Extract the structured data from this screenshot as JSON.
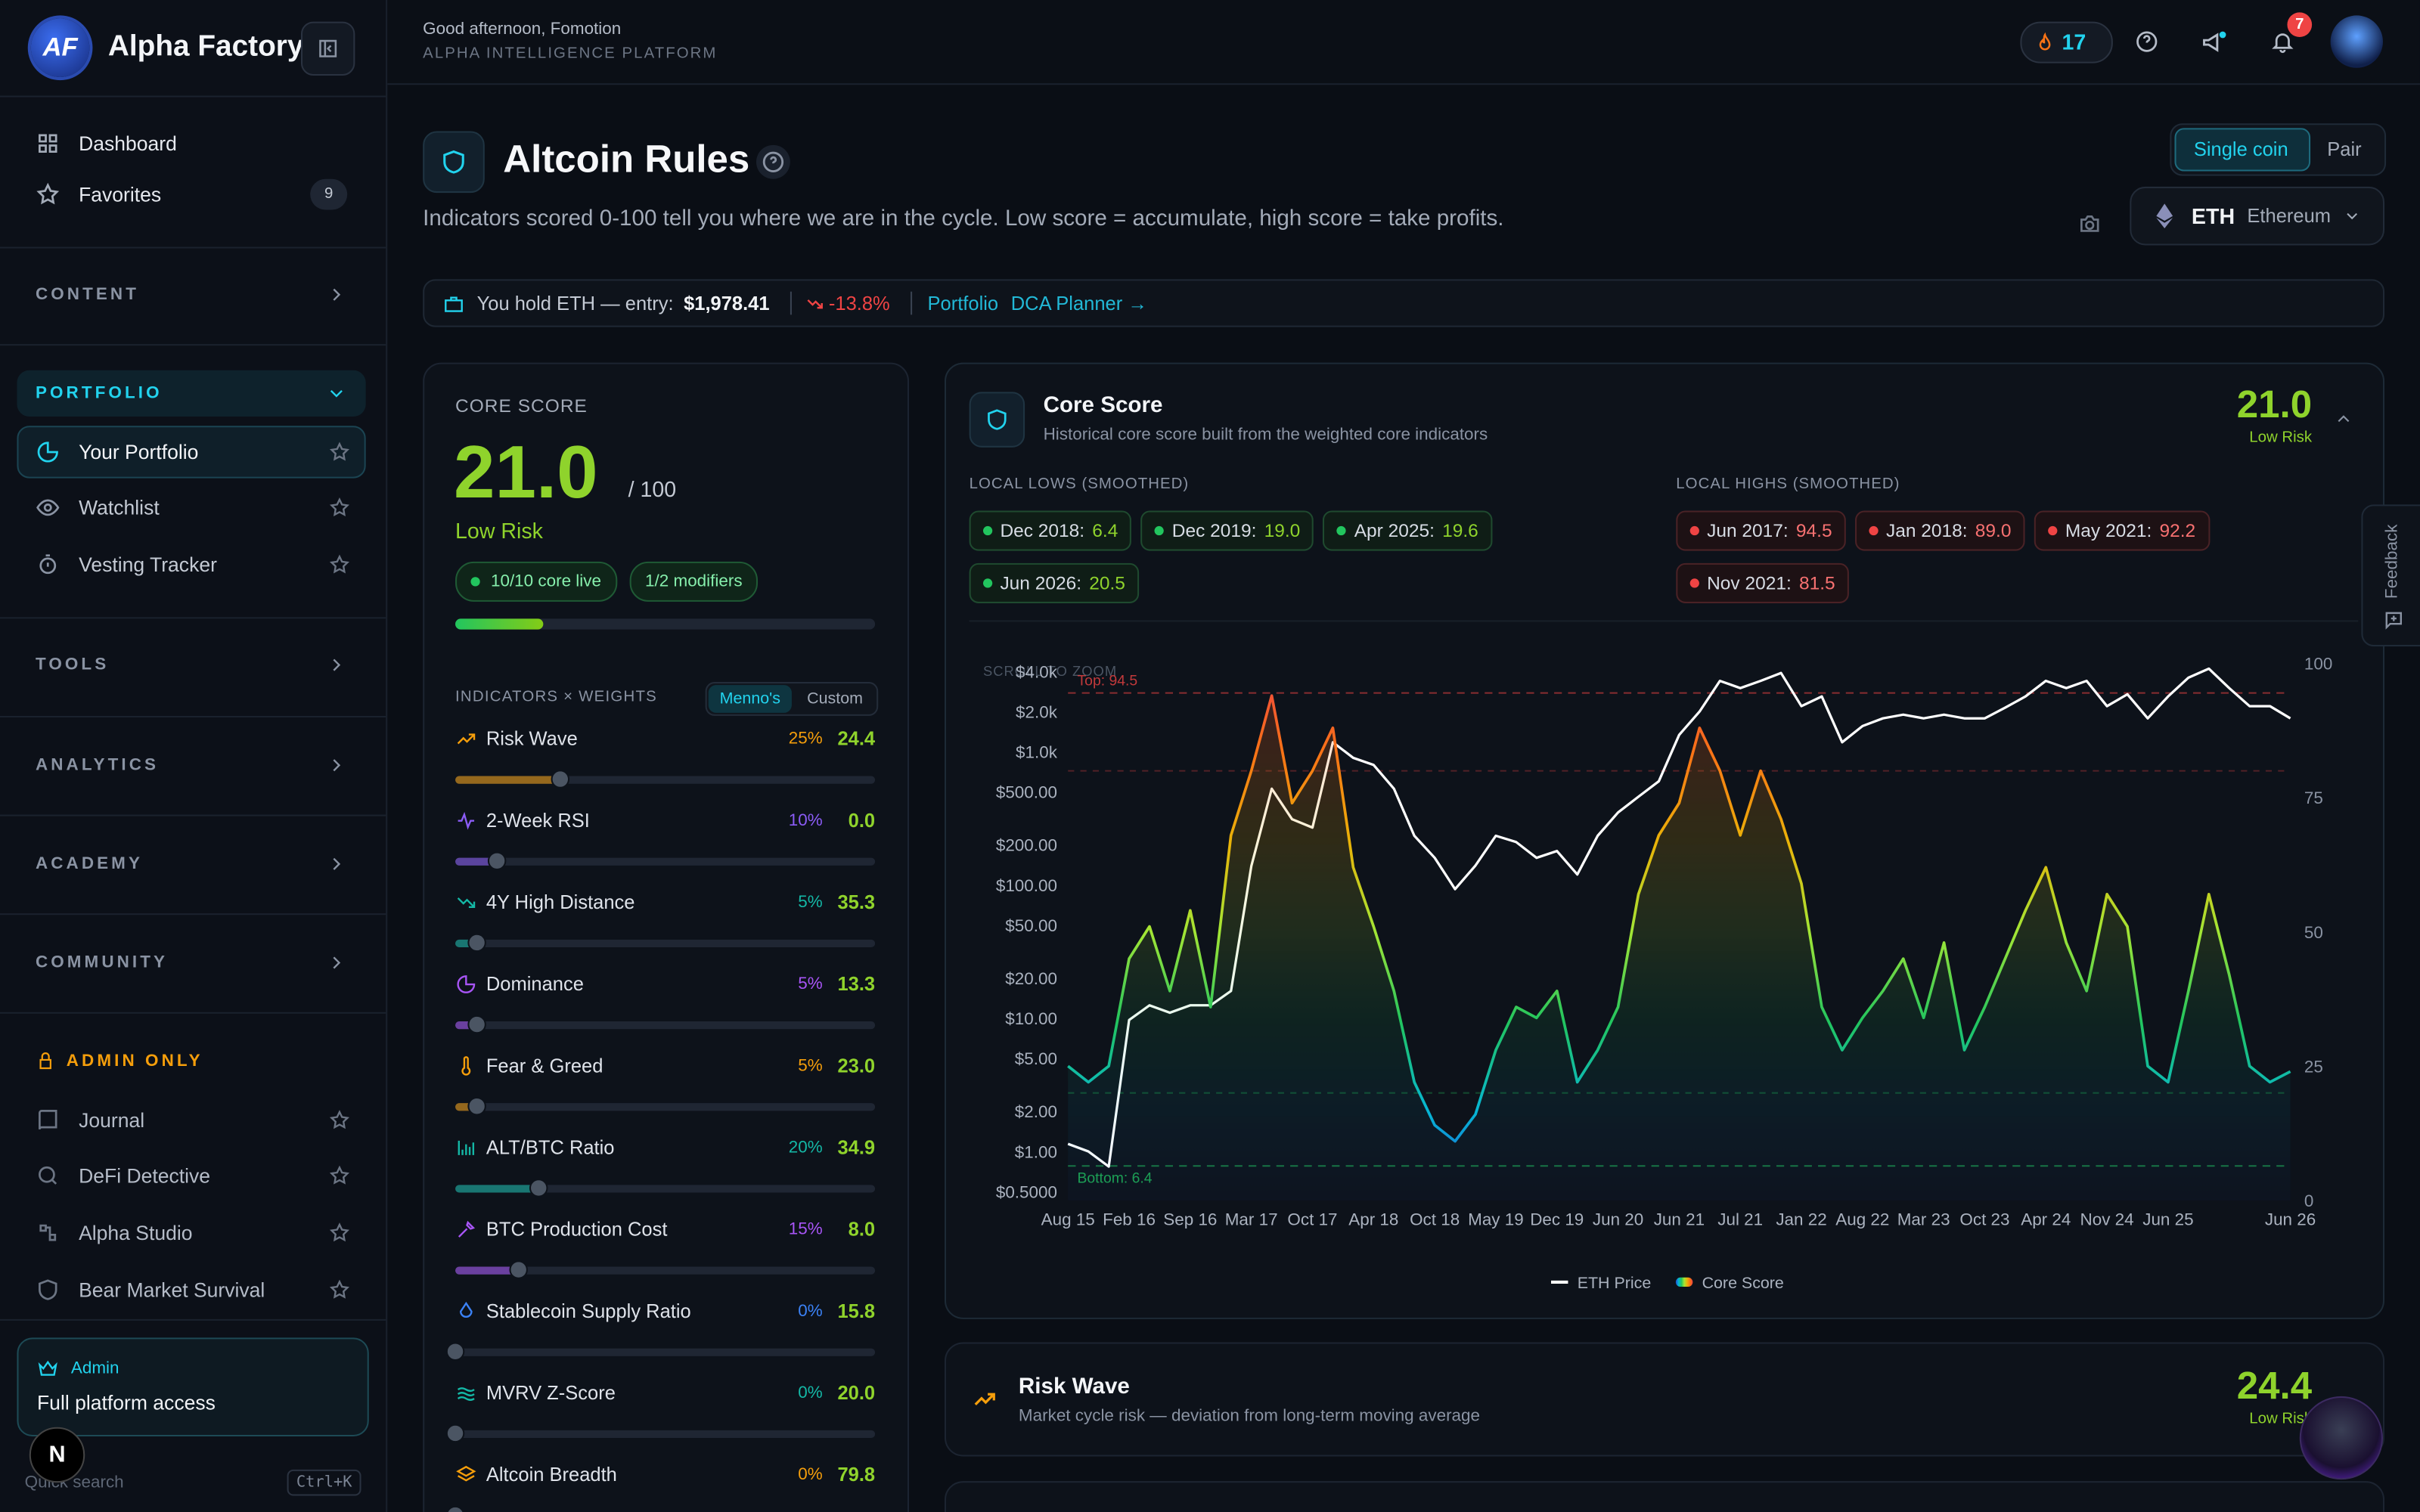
{
  "sidebar": {
    "logo": "AF",
    "brand": "Alpha Factory",
    "nav": [
      {
        "label": "Dashboard"
      },
      {
        "label": "Favorites",
        "badge": "9"
      }
    ],
    "groups": [
      {
        "label": "CONTENT"
      },
      {
        "label": "PORTFOLIO",
        "items": [
          "Your Portfolio",
          "Watchlist",
          "Vesting Tracker"
        ]
      },
      {
        "label": "TOOLS"
      },
      {
        "label": "ANALYTICS"
      },
      {
        "label": "ACADEMY"
      },
      {
        "label": "COMMUNITY"
      }
    ],
    "admin": {
      "label": "ADMIN ONLY",
      "items": [
        "Journal",
        "DeFi Detective",
        "Alpha Studio",
        "Bear Market Survival"
      ]
    },
    "admin_card": {
      "role": "Admin",
      "text": "Full platform access"
    },
    "search": {
      "label": "Quick search",
      "shortcut": "Ctrl+K"
    },
    "dev_badge": "N"
  },
  "topbar": {
    "greeting": "Good afternoon, Fomotion",
    "subtitle": "ALPHA INTELLIGENCE PLATFORM",
    "streak": "17",
    "notifications": "7"
  },
  "header": {
    "title": "Altcoin Rules",
    "description": "Indicators scored 0-100 tell you where we are in the cycle. Low score = accumulate, high score = take profits.",
    "modes": [
      "Single coin",
      "Pair"
    ],
    "coin": {
      "symbol": "ETH",
      "name": "Ethereum"
    }
  },
  "holding": {
    "text": "You hold ETH — entry:",
    "entry": "$1,978.41",
    "change": "-13.8%",
    "links": [
      "Portfolio",
      "DCA Planner →"
    ]
  },
  "score_card": {
    "label": "CORE SCORE",
    "score": {
      "value": 21,
      "label": "21.0"
    },
    "max": "/ 100",
    "risk": "Low Risk",
    "badges": [
      "10/10 core live",
      "1/2 modifiers"
    ],
    "indicators_title": "INDICATORS × WEIGHTS",
    "presets": [
      "Menno's",
      "Custom"
    ],
    "indicators": [
      {
        "name": "Risk Wave",
        "weight": {
          "value": 25,
          "label": "25%"
        },
        "score": "24.4",
        "color": "#f59e0b"
      },
      {
        "name": "2-Week RSI",
        "weight": {
          "value": 10,
          "label": "10%"
        },
        "score": "0.0",
        "color": "#8b5cf6"
      },
      {
        "name": "4Y High Distance",
        "weight": {
          "value": 5,
          "label": "5%"
        },
        "score": "35.3",
        "color": "#14b8a6"
      },
      {
        "name": "Dominance",
        "weight": {
          "value": 5,
          "label": "5%"
        },
        "score": "13.3",
        "color": "#a855f7"
      },
      {
        "name": "Fear & Greed",
        "weight": {
          "value": 5,
          "label": "5%"
        },
        "score": "23.0",
        "color": "#f59e0b"
      },
      {
        "name": "ALT/BTC Ratio",
        "weight": {
          "value": 20,
          "label": "20%"
        },
        "score": "34.9",
        "color": "#14b8a6"
      },
      {
        "name": "BTC Production Cost",
        "weight": {
          "value": 15,
          "label": "15%"
        },
        "score": "8.0",
        "color": "#a855f7"
      },
      {
        "name": "Stablecoin Supply Ratio",
        "weight": {
          "value": 0,
          "label": "0%"
        },
        "score": "15.8",
        "color": "#3b82f6"
      },
      {
        "name": "MVRV Z-Score",
        "weight": {
          "value": 0,
          "label": "0%"
        },
        "score": "20.0",
        "color": "#14b8a6"
      },
      {
        "name": "Altcoin Breadth",
        "weight": {
          "value": 0,
          "label": "0%"
        },
        "score": "79.8",
        "color": "#f59e0b"
      }
    ]
  },
  "chart_card": {
    "title": "Core Score",
    "subtitle": "Historical core score built from the weighted core indicators",
    "score": "21.0",
    "risk": "Low Risk",
    "lows_title": "LOCAL LOWS (SMOOTHED)",
    "lows": [
      {
        "date": "Dec 2018:",
        "value": "6.4"
      },
      {
        "date": "Dec 2019:",
        "value": "19.0"
      },
      {
        "date": "Apr 2025:",
        "value": "19.6"
      },
      {
        "date": "Jun 2026:",
        "value": "20.5"
      }
    ],
    "highs_title": "LOCAL HIGHS (SMOOTHED)",
    "highs": [
      {
        "date": "Jun 2017:",
        "value": "94.5"
      },
      {
        "date": "Jan 2018:",
        "value": "89.0"
      },
      {
        "date": "May 2021:",
        "value": "92.2"
      },
      {
        "date": "Nov 2021:",
        "value": "81.5"
      }
    ]
  },
  "chart_data": {
    "type": "line",
    "hint": "SCROLL TO ZOOM",
    "categories": [
      "Aug 15",
      null,
      null,
      "Feb 16",
      null,
      null,
      "Sep 16",
      null,
      null,
      "Mar 17",
      null,
      null,
      "Oct 17",
      null,
      null,
      "Apr 18",
      null,
      null,
      "Oct 18",
      null,
      null,
      "May 19",
      null,
      null,
      "Dec 19",
      null,
      null,
      "Jun 20",
      null,
      null,
      "Jun 21",
      null,
      null,
      "Jul 21",
      null,
      null,
      "Jan 22",
      null,
      null,
      "Aug 22",
      null,
      null,
      "Mar 23",
      null,
      null,
      "Oct 23",
      null,
      null,
      "Apr 24",
      null,
      null,
      "Nov 24",
      null,
      null,
      "Jun 25",
      null,
      null,
      null,
      null,
      null,
      "Jun 26"
    ],
    "series": [
      {
        "name": "ETH Price",
        "color": "#ffffff",
        "axis": "y",
        "values": [
          1.14,
          1.0,
          0.77,
          9.7,
          12.5,
          11,
          12.5,
          12.5,
          16,
          139,
          528,
          311,
          270,
          1177,
          900,
          795,
          528,
          234,
          160,
          93,
          140,
          234,
          210,
          160,
          180,
          120,
          234,
          350,
          460,
          600,
          1340,
          2000,
          3400,
          3000,
          3400,
          3900,
          2200,
          2600,
          1177,
          1560,
          1780,
          1900,
          1780,
          1900,
          1780,
          1780,
          2140,
          2600,
          3400,
          3000,
          3400,
          2200,
          2700,
          1780,
          2600,
          3600,
          4200,
          3000,
          2200,
          2200,
          1780
        ]
      },
      {
        "name": "Core Score",
        "colors": [
          "#1d4ed8",
          "#06b6d4",
          "#22c55e",
          "#a3e635",
          "#eab308",
          "#f97316",
          "#ef4444"
        ],
        "axis": "y2",
        "values": [
          25,
          22,
          25,
          45,
          51,
          39,
          54,
          36,
          68,
          80,
          94,
          74,
          80,
          88,
          62,
          51,
          39,
          22,
          14,
          11,
          16,
          28,
          36,
          34,
          39,
          22,
          28,
          36,
          57,
          68,
          74,
          88,
          80,
          68,
          80,
          71,
          59,
          36,
          28,
          34,
          39,
          45,
          34,
          48,
          28,
          36,
          45,
          54,
          62,
          48,
          39,
          57,
          51,
          25,
          22,
          39,
          57,
          42,
          25,
          22,
          24
        ]
      }
    ],
    "log_y": true,
    "ylim": [
      0.43,
      4600
    ],
    "yticks": [
      {
        "value": 0.5,
        "label": "$0.5000"
      },
      {
        "value": 1,
        "label": "$1.00"
      },
      {
        "value": 2,
        "label": "$2.00"
      },
      {
        "value": 5,
        "label": "$5.00"
      },
      {
        "value": 10,
        "label": "$10.00"
      },
      {
        "value": 20,
        "label": "$20.00"
      },
      {
        "value": 50,
        "label": "$50.00"
      },
      {
        "value": 100,
        "label": "$100.00"
      },
      {
        "value": 200,
        "label": "$200.00"
      },
      {
        "value": 500,
        "label": "$500.00"
      },
      {
        "value": 1000,
        "label": "$1.0k"
      },
      {
        "value": 2000,
        "label": "$2.0k"
      },
      {
        "value": 4000,
        "label": "$4.0k"
      }
    ],
    "y2lim": [
      0,
      100
    ],
    "y2ticks": [
      0,
      25,
      50,
      75,
      100
    ],
    "top_line": {
      "value": 94.5,
      "label": "Top: 94.5"
    },
    "bottom_line": {
      "value": 6.4,
      "label": "Bottom: 6.4"
    },
    "reference_lines": [
      20,
      80
    ],
    "legend": "bottom"
  },
  "risk_card": {
    "title": "Risk Wave",
    "subtitle": "Market cycle risk — deviation from long-term moving average",
    "score": "24.4",
    "risk": "Low Risk"
  },
  "feedback": "Feedback"
}
